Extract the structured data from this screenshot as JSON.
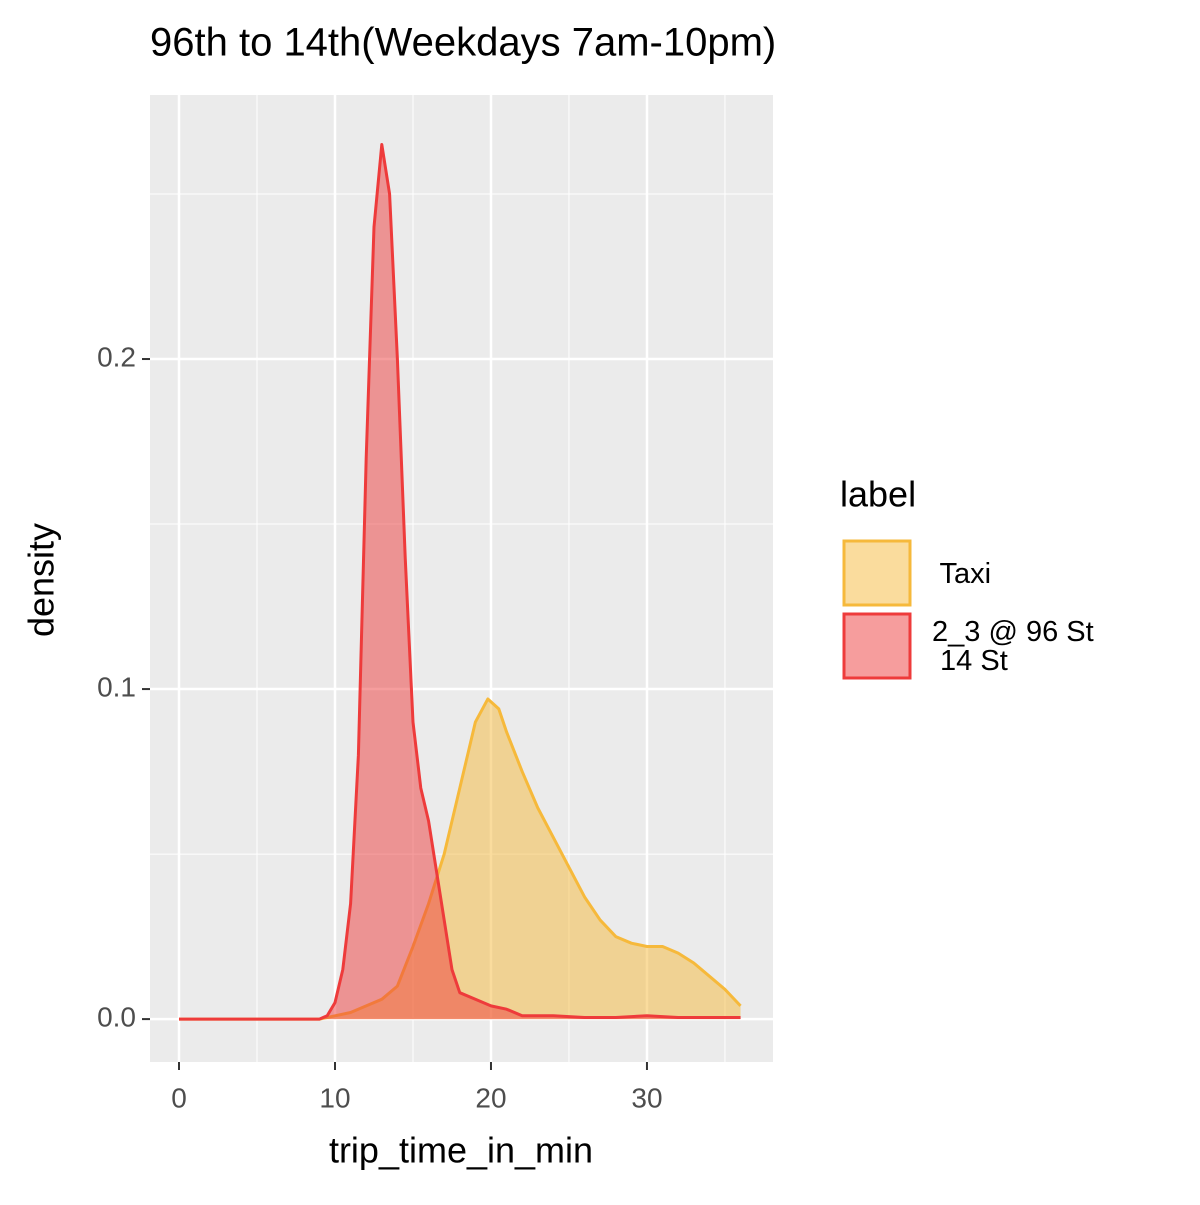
{
  "chart_data": {
    "type": "density",
    "title": "96th to 14th(Weekdays 7am-10pm)",
    "x_label": "trip_time_in_min",
    "y_label": "density",
    "legend_title": "label",
    "legend_position": "right",
    "grid": true,
    "xlim": [
      -1.86,
      38.08
    ],
    "ylim": [
      -0.013,
      0.28
    ],
    "xticks": [
      0,
      10,
      20,
      30
    ],
    "yticks": [
      {
        "value": 0,
        "label": "0.0"
      },
      0.1,
      0.2
    ],
    "x_minor_breaks": [
      5,
      15,
      25,
      35
    ],
    "y_minor_breaks": [
      0.05,
      0.15,
      0.25
    ],
    "series": [
      {
        "name": " Taxi",
        "color": "#f6b93b",
        "x": [
          0,
          9,
          10,
          11,
          12,
          13,
          14,
          15,
          16,
          17,
          18,
          19,
          19.8,
          20.5,
          21,
          22,
          23,
          24,
          25,
          26,
          27,
          28,
          29,
          30,
          31,
          32,
          33,
          34,
          35,
          36
        ],
        "values": [
          0,
          0,
          0.001,
          0.002,
          0.004,
          0.006,
          0.01,
          0.022,
          0.035,
          0.05,
          0.07,
          0.09,
          0.097,
          0.094,
          0.087,
          0.075,
          0.064,
          0.055,
          0.046,
          0.037,
          0.03,
          0.025,
          0.023,
          0.022,
          0.022,
          0.02,
          0.017,
          0.013,
          0.009,
          0.004
        ]
      },
      {
        "name": "2_3 @ 96 St\n 14 St",
        "color": "#ee3b3b",
        "x": [
          0,
          9,
          9.5,
          10,
          10.5,
          11,
          11.5,
          12,
          12.5,
          13,
          13.5,
          14,
          14.5,
          15,
          15.5,
          16,
          16.5,
          17,
          17.5,
          18,
          19,
          20,
          21,
          22,
          24,
          26,
          28,
          30,
          32,
          36
        ],
        "values": [
          0,
          0,
          0.001,
          0.005,
          0.015,
          0.035,
          0.08,
          0.17,
          0.24,
          0.265,
          0.25,
          0.2,
          0.14,
          0.09,
          0.07,
          0.06,
          0.045,
          0.03,
          0.015,
          0.008,
          0.006,
          0.004,
          0.003,
          0.001,
          0.001,
          0.0005,
          0.0005,
          0.001,
          0.0005,
          0.0005
        ]
      }
    ]
  }
}
